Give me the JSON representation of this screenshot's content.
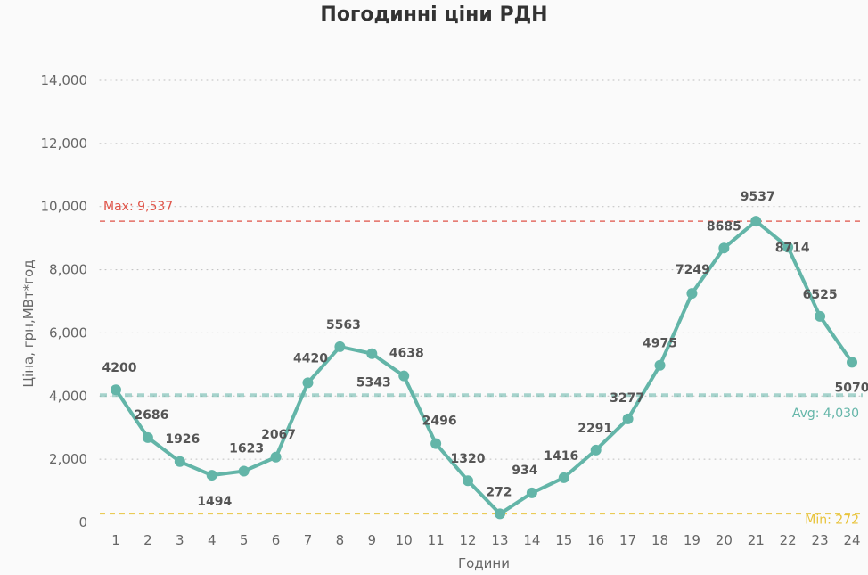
{
  "chart_data": {
    "type": "line",
    "title": "Погодинні ціни РДН",
    "xlabel": "Години",
    "ylabel": "Ціна, грн,МВт*год",
    "categories": [
      "1",
      "2",
      "3",
      "4",
      "5",
      "6",
      "7",
      "8",
      "9",
      "10",
      "11",
      "12",
      "13",
      "14",
      "15",
      "16",
      "17",
      "18",
      "19",
      "20",
      "21",
      "22",
      "23",
      "24"
    ],
    "values": [
      4200,
      2686,
      1926,
      1494,
      1623,
      2067,
      4420,
      5563,
      5343,
      4638,
      2496,
      1320,
      272,
      934,
      1416,
      2291,
      3277,
      4975,
      7249,
      8685,
      9537,
      8714,
      6525,
      5070
    ],
    "data_labels": [
      "4200",
      "2686",
      "1926",
      "1494",
      "1623",
      "2067",
      "4420",
      "5563",
      "5343",
      "4638",
      "2496",
      "1320",
      "272",
      "934",
      "1416",
      "2291",
      "3277",
      "4975",
      "7249",
      "8685",
      "9537",
      "8714",
      "6525",
      "5070"
    ],
    "ylim": [
      0,
      14000
    ],
    "yticks": [
      0,
      2000,
      4000,
      6000,
      8000,
      10000,
      12000,
      14000
    ],
    "ytick_labels": [
      "0",
      "2,000",
      "4,000",
      "6,000",
      "8,000",
      "10,000",
      "12,000",
      "14,000"
    ],
    "grid": true,
    "line_color": "#63b5a8",
    "reference_lines": [
      {
        "id": "max",
        "label": "Max: 9,537",
        "value": 9537,
        "color": "#e0554a"
      },
      {
        "id": "avg",
        "label": "Avg: 4,030",
        "value": 4030,
        "color": "#63b5a8"
      },
      {
        "id": "min",
        "label": "Min: 272",
        "value": 272,
        "color": "#e8c33a"
      }
    ]
  }
}
